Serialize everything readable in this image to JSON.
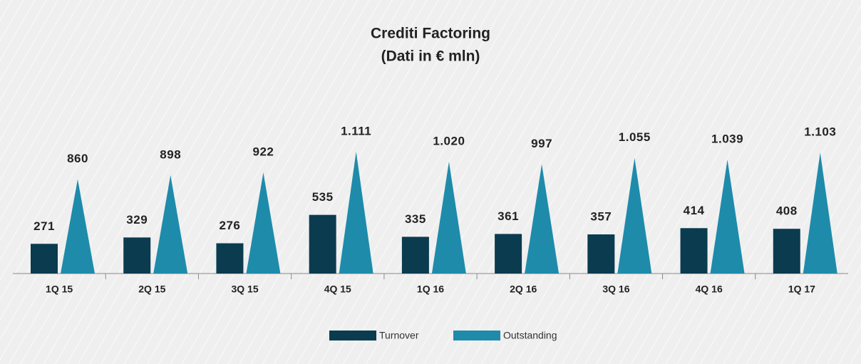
{
  "chart_data": {
    "type": "bar",
    "title": "Crediti Factoring",
    "subtitle": "(Dati in € mln)",
    "categories": [
      "1Q 15",
      "2Q 15",
      "3Q 15",
      "4Q 15",
      "1Q 16",
      "2Q 16",
      "3Q 16",
      "4Q 16",
      "1Q 17"
    ],
    "series": [
      {
        "name": "Turnover",
        "color": "#0b3b4f",
        "shape": "bar",
        "values": [
          271,
          329,
          276,
          535,
          335,
          361,
          357,
          414,
          408
        ]
      },
      {
        "name": "Outstanding",
        "color": "#1e8bab",
        "shape": "triangle",
        "values": [
          860,
          898,
          922,
          1111,
          1020,
          997,
          1055,
          1039,
          1103
        ],
        "value_labels": [
          "860",
          "898",
          "922",
          "1.111",
          "1.020",
          "997",
          "1.055",
          "1.039",
          "1.103"
        ]
      }
    ],
    "legend": "bottom"
  }
}
